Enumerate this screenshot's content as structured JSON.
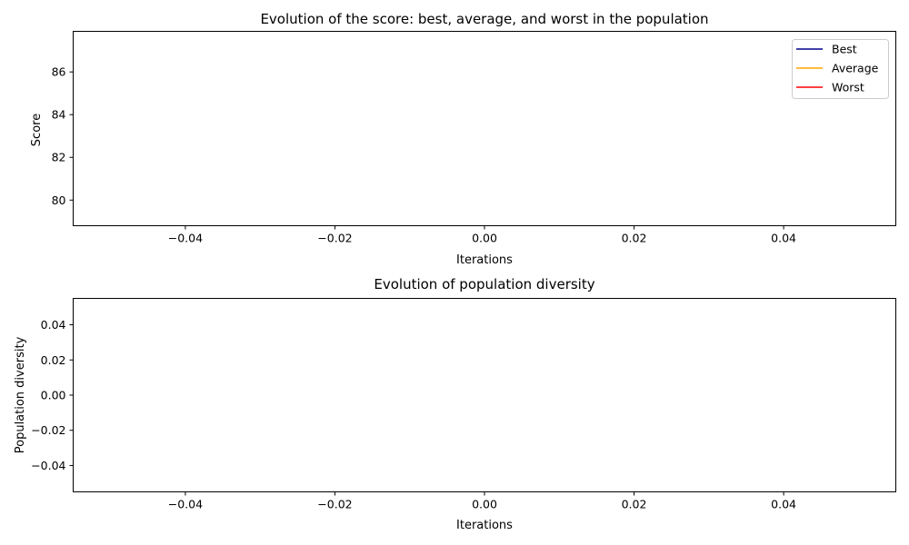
{
  "chart_data": [
    {
      "type": "line",
      "title": "Evolution of the score: best, average, and worst in the population",
      "xlabel": "Iterations",
      "ylabel": "Score",
      "xlim": [
        -0.055,
        0.055
      ],
      "ylim": [
        78.8,
        87.9
      ],
      "xticks": [
        -0.04,
        -0.02,
        0.0,
        0.02,
        0.04
      ],
      "xtick_labels": [
        "−0.04",
        "−0.02",
        "0.00",
        "0.02",
        "0.04"
      ],
      "yticks": [
        80,
        82,
        84,
        86
      ],
      "ytick_labels": [
        "80",
        "82",
        "84",
        "86"
      ],
      "grid": false,
      "legend_position": "top-right",
      "series": [
        {
          "name": "Best",
          "color": "#00008b",
          "x": [],
          "y": []
        },
        {
          "name": "Average",
          "color": "#ffa500",
          "x": [],
          "y": []
        },
        {
          "name": "Worst",
          "color": "#ff0000",
          "x": [],
          "y": []
        }
      ]
    },
    {
      "type": "line",
      "title": "Evolution of population diversity",
      "xlabel": "Iterations",
      "ylabel": "Population diversity",
      "xlim": [
        -0.055,
        0.055
      ],
      "ylim": [
        -0.055,
        0.055
      ],
      "xticks": [
        -0.04,
        -0.02,
        0.0,
        0.02,
        0.04
      ],
      "xtick_labels": [
        "−0.04",
        "−0.02",
        "0.00",
        "0.02",
        "0.04"
      ],
      "yticks": [
        0.04,
        0.02,
        0.0,
        -0.02,
        -0.04
      ],
      "ytick_labels": [
        "0.04",
        "0.02",
        "0.00",
        "−0.02",
        "−0.04"
      ],
      "grid": false,
      "series": []
    }
  ]
}
